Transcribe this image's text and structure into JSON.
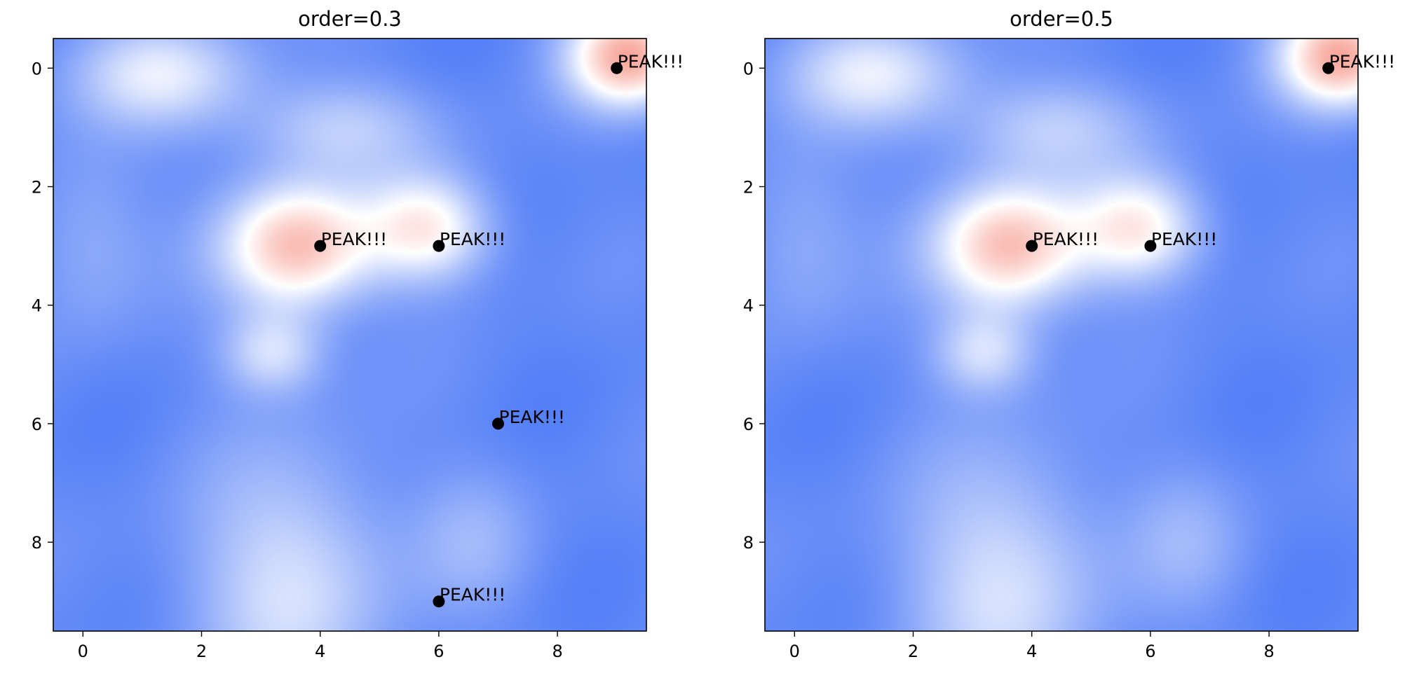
{
  "chart_data": [
    {
      "type": "heatmap",
      "title": "order=0.3",
      "xlabel": "",
      "ylabel": "",
      "xlim": [
        -0.5,
        9.5
      ],
      "ylim": [
        9.5,
        -0.5
      ],
      "xticks": [
        0,
        2,
        4,
        6,
        8
      ],
      "yticks": [
        0,
        2,
        4,
        6,
        8
      ],
      "grid": false,
      "colormap": [
        "#0040f2",
        "#ffffff",
        "#ef3e25"
      ],
      "peak_marker_color": "#000000",
      "peaks": [
        {
          "x": 9,
          "y": 0,
          "label": "PEAK!!!"
        },
        {
          "x": 4,
          "y": 3,
          "label": "PEAK!!!"
        },
        {
          "x": 6,
          "y": 3,
          "label": "PEAK!!!"
        },
        {
          "x": 7,
          "y": 6,
          "label": "PEAK!!!"
        },
        {
          "x": 6,
          "y": 9,
          "label": "PEAK!!!"
        }
      ]
    },
    {
      "type": "heatmap",
      "title": "order=0.5",
      "xlabel": "",
      "ylabel": "",
      "xlim": [
        -0.5,
        9.5
      ],
      "ylim": [
        9.5,
        -0.5
      ],
      "xticks": [
        0,
        2,
        4,
        6,
        8
      ],
      "yticks": [
        0,
        2,
        4,
        6,
        8
      ],
      "grid": false,
      "colormap": [
        "#0040f2",
        "#ffffff",
        "#ef3e25"
      ],
      "peak_marker_color": "#000000",
      "peaks": [
        {
          "x": 9,
          "y": 0,
          "label": "PEAK!!!"
        },
        {
          "x": 4,
          "y": 3,
          "label": "PEAK!!!"
        },
        {
          "x": 6,
          "y": 3,
          "label": "PEAK!!!"
        }
      ]
    }
  ]
}
